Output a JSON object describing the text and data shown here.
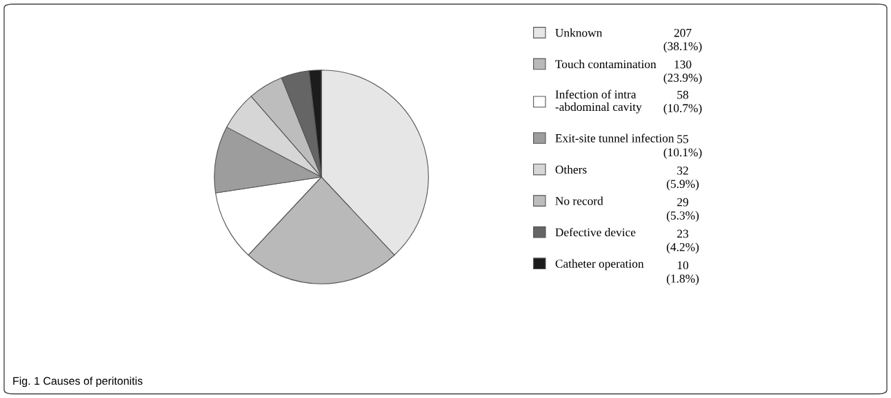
{
  "chart_data": {
    "type": "pie",
    "categories": [
      "Unknown",
      "Touch contamination",
      "Infection of intra\n-abdominal cavity",
      "Exit-site tunnel infection",
      "Others",
      "No record",
      "Defective device",
      "Catheter operation"
    ],
    "values": [
      207,
      130,
      58,
      55,
      32,
      29,
      23,
      10
    ],
    "value_labels": [
      "207\n(38.1%)",
      "130\n(23.9%)",
      "58\n(10.7%)",
      "55\n(10.1%)",
      "32\n(5.9%)",
      "29\n(5.3%)",
      "23\n(4.2%)",
      "10\n(1.8%)"
    ],
    "colors": [
      "#e6e6e6",
      "#b9b9b9",
      "#ffffff",
      "#9d9d9d",
      "#d6d6d6",
      "#bdbdbd",
      "#656565",
      "#1c1c1c"
    ],
    "legend": "right",
    "annotations": [
      "Fig. 1 Causes of peritonitis"
    ]
  }
}
